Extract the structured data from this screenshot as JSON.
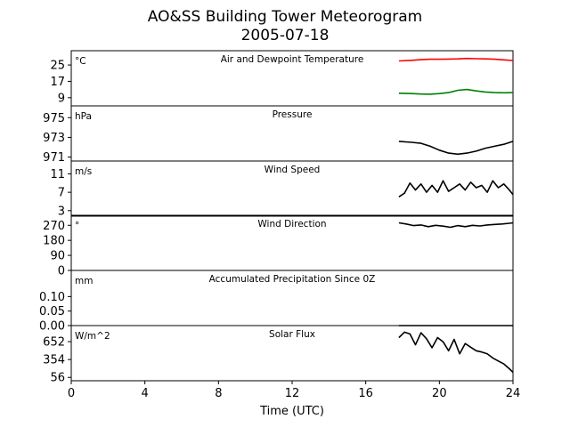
{
  "figure": {
    "title_line1": "AO&SS Building Tower Meteorogram",
    "title_line2": "2005-07-18",
    "xlabel": "Time (UTC)",
    "xticks": [
      "0",
      "4",
      "8",
      "12",
      "16",
      "20",
      "24"
    ]
  },
  "chart_data": [
    {
      "type": "line",
      "title": "Air and Dewpoint Temperature",
      "unit": "°C",
      "xlim": [
        0,
        24
      ],
      "ylim": [
        5,
        32
      ],
      "yticks": [
        25,
        17,
        9
      ],
      "series": [
        {
          "color": "#ff0000",
          "x": [
            17.8,
            18.5,
            19.0,
            19.5,
            20.0,
            20.5,
            21.0,
            21.5,
            22.0,
            22.5,
            23.0,
            23.5,
            24.0
          ],
          "y": [
            27.0,
            27.3,
            27.6,
            27.8,
            27.8,
            27.9,
            28.0,
            28.2,
            28.1,
            28.0,
            27.8,
            27.5,
            27.2
          ]
        },
        {
          "color": "#008000",
          "x": [
            17.8,
            18.5,
            19.0,
            19.5,
            20.0,
            20.5,
            21.0,
            21.5,
            22.0,
            22.5,
            23.0,
            23.5,
            24.0
          ],
          "y": [
            11.2,
            11.0,
            10.8,
            10.7,
            11.0,
            11.5,
            12.6,
            13.0,
            12.3,
            11.8,
            11.5,
            11.4,
            11.5
          ]
        }
      ]
    },
    {
      "type": "line",
      "title": "Pressure",
      "unit": "hPa",
      "xlim": [
        0,
        24
      ],
      "ylim": [
        970.6,
        976.2
      ],
      "yticks": [
        975,
        973,
        971
      ],
      "series": [
        {
          "color": "#000000",
          "x": [
            17.8,
            18.5,
            19.0,
            19.5,
            20.0,
            20.5,
            21.0,
            21.5,
            22.0,
            22.5,
            23.0,
            23.5,
            24.0
          ],
          "y": [
            972.6,
            972.5,
            972.4,
            972.1,
            971.7,
            971.4,
            971.3,
            971.4,
            971.6,
            971.9,
            972.1,
            972.3,
            972.6
          ]
        }
      ]
    },
    {
      "type": "line",
      "title": "Wind Speed",
      "unit": "m/s",
      "xlim": [
        0,
        24
      ],
      "ylim": [
        1.8,
        13.8
      ],
      "yticks": [
        11,
        7,
        3
      ],
      "series": [
        {
          "color": "#000000",
          "x": [
            17.8,
            18.1,
            18.4,
            18.7,
            19.0,
            19.3,
            19.6,
            19.9,
            20.2,
            20.5,
            20.8,
            21.1,
            21.4,
            21.7,
            22.0,
            22.3,
            22.6,
            22.9,
            23.2,
            23.5,
            23.8,
            24.0
          ],
          "y": [
            6.0,
            6.8,
            9.0,
            7.5,
            8.8,
            7.0,
            8.5,
            7.0,
            9.5,
            7.2,
            8.0,
            8.8,
            7.5,
            9.2,
            8.0,
            8.5,
            7.0,
            9.5,
            8.0,
            8.8,
            7.5,
            6.5
          ]
        }
      ]
    },
    {
      "type": "line",
      "title": "Wind Direction",
      "unit": "°",
      "xlim": [
        0,
        24
      ],
      "ylim": [
        0,
        330
      ],
      "yticks": [
        270,
        180,
        90,
        0
      ],
      "series": [
        {
          "color": "#000000",
          "x": [
            17.8,
            18.2,
            18.6,
            19.0,
            19.4,
            19.8,
            20.2,
            20.6,
            21.0,
            21.4,
            21.8,
            22.2,
            22.6,
            23.0,
            23.4,
            23.8,
            24.0
          ],
          "y": [
            285,
            278,
            268,
            272,
            262,
            270,
            265,
            258,
            268,
            262,
            270,
            266,
            272,
            275,
            278,
            282,
            285
          ]
        }
      ]
    },
    {
      "type": "line",
      "title": "Accumulated Precipitation Since 0Z",
      "unit": "mm",
      "xlim": [
        0,
        24
      ],
      "ylim": [
        0,
        0.19
      ],
      "yticks": [
        0.1,
        0.05,
        0.0
      ],
      "series": [
        {
          "color": "#000000",
          "x": [
            17.8,
            24.0
          ],
          "y": [
            0.0,
            0.0
          ]
        }
      ]
    },
    {
      "type": "line",
      "title": "Solar Flux",
      "unit": "W/m^2",
      "xlim": [
        0,
        24
      ],
      "ylim": [
        0,
        920
      ],
      "yticks": [
        652,
        354,
        56
      ],
      "series": [
        {
          "color": "#000000",
          "x": [
            17.8,
            18.1,
            18.4,
            18.7,
            19.0,
            19.3,
            19.6,
            19.9,
            20.2,
            20.5,
            20.8,
            21.1,
            21.4,
            21.7,
            22.0,
            22.3,
            22.6,
            22.9,
            23.2,
            23.5,
            23.8,
            24.0
          ],
          "y": [
            720,
            810,
            780,
            600,
            800,
            700,
            550,
            720,
            650,
            500,
            690,
            450,
            620,
            560,
            500,
            480,
            450,
            380,
            330,
            280,
            200,
            140
          ]
        }
      ]
    }
  ]
}
